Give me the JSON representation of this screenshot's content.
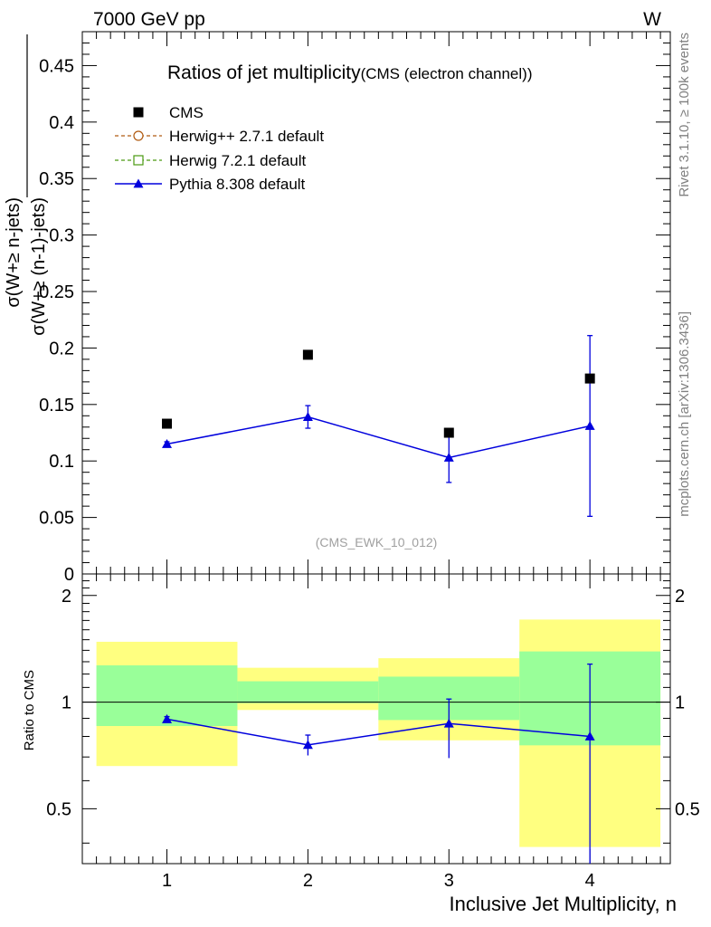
{
  "header": {
    "left_label": "7000 GeV pp",
    "right_label": "W"
  },
  "side_labels": {
    "rivet": "Rivet 3.1.10, ≥ 100k events",
    "mcplots": "mcplots.cern.ch [arXiv:1306.3436]"
  },
  "chart_data": [
    {
      "type": "scatter",
      "title": "Ratios of jet multiplicity",
      "subtitle": "(CMS (electron channel))",
      "analysis_tag": "(CMS_EWK_10_012)",
      "ylabel_numerator": "σ(W+≥ n-jets)",
      "ylabel_denominator": "σ(W+≥ (n-1)-jets)",
      "xlabel": "",
      "xlim": [
        0.4,
        4.57
      ],
      "ylim": [
        0,
        0.48
      ],
      "y_ticks": [
        0,
        0.05,
        0.1,
        0.15,
        0.2,
        0.25,
        0.3,
        0.35,
        0.4,
        0.45
      ],
      "y_tick_labels": [
        "0",
        "0.05",
        "0.1",
        "0.15",
        "0.2",
        "0.25",
        "0.3",
        "0.35",
        "0.4",
        "0.45"
      ],
      "legend": [
        {
          "name": "CMS",
          "style": "marker-square",
          "color": "#000000"
        },
        {
          "name": "Herwig++ 2.7.1 default",
          "style": "dashed-circle",
          "color": "#b05a10"
        },
        {
          "name": "Herwig 7.2.1 default",
          "style": "dashed-square",
          "color": "#4a9a10"
        },
        {
          "name": "Pythia 8.308 default",
          "style": "line-triangle",
          "color": "#0000dd"
        }
      ],
      "series": [
        {
          "name": "CMS",
          "x": [
            1,
            2,
            3,
            4
          ],
          "values": [
            0.133,
            0.194,
            0.125,
            0.173
          ]
        },
        {
          "name": "Pythia 8.308 default",
          "x": [
            1,
            2,
            3,
            4
          ],
          "values": [
            0.115,
            0.139,
            0.103,
            0.131
          ],
          "err_low": [
            0.002,
            0.01,
            0.022,
            0.08
          ],
          "err_high": [
            0.002,
            0.01,
            0.022,
            0.08
          ]
        }
      ]
    },
    {
      "type": "scatter",
      "ylabel": "Ratio to CMS",
      "xlabel": "Inclusive Jet Multiplicity, n",
      "xlim": [
        0.4,
        4.57
      ],
      "ylim": [
        0.35,
        2.3
      ],
      "scale": "log",
      "x_ticks": [
        1,
        2,
        3,
        4
      ],
      "x_tick_labels": [
        "1",
        "2",
        "3",
        "4"
      ],
      "y_ticks": [
        0.5,
        1,
        2
      ],
      "y_tick_labels": [
        "0.5",
        "1",
        "2"
      ],
      "reference": 1,
      "bands": [
        {
          "x": [
            0.5,
            1.5
          ],
          "yellow": [
            0.66,
            1.48
          ],
          "green": [
            0.856,
            1.27
          ]
        },
        {
          "x": [
            1.5,
            2.5
          ],
          "yellow": [
            0.95,
            1.25
          ],
          "green": [
            0.993,
            1.145
          ]
        },
        {
          "x": [
            2.5,
            3.5
          ],
          "yellow": [
            0.78,
            1.33
          ],
          "green": [
            0.89,
            1.18
          ]
        },
        {
          "x": [
            3.5,
            4.5
          ],
          "yellow": [
            0.39,
            1.71
          ],
          "green": [
            0.755,
            1.39
          ]
        }
      ],
      "series": [
        {
          "name": "Pythia 8.308 default",
          "x": [
            1,
            2,
            3,
            4
          ],
          "values": [
            0.895,
            0.757,
            0.87,
            0.8
          ],
          "err_low": [
            0.015,
            0.05,
            0.175,
            0.45
          ],
          "err_high": [
            0.015,
            0.05,
            0.15,
            0.48
          ]
        }
      ]
    }
  ]
}
